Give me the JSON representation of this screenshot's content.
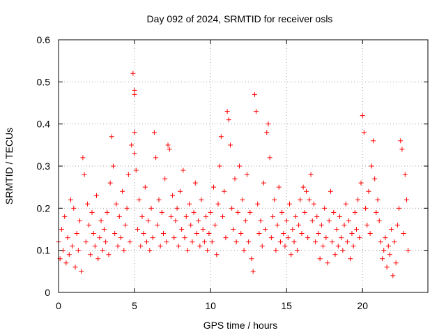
{
  "chart_data": {
    "type": "scatter",
    "title": "Day 092 of 2024, SRMTID for receiver osls",
    "xlabel": "GPS time / hours",
    "ylabel": "SRMTID / TECUs",
    "xlim": [
      0,
      24.3
    ],
    "ylim": [
      0,
      0.6
    ],
    "xticks": [
      0,
      5,
      10,
      15,
      20
    ],
    "yticks": [
      0,
      0.1,
      0.2,
      0.3,
      0.4,
      0.5,
      0.6
    ],
    "xtick_labels": [
      "0",
      "5",
      "10",
      "15",
      "20"
    ],
    "ytick_labels": [
      "0",
      "0.1",
      "0.2",
      "0.3",
      "0.4",
      "0.5",
      "0.6"
    ],
    "grid": true,
    "marker": "+",
    "color": "#ff0000",
    "series": [
      {
        "name": "SRMTID",
        "points": [
          [
            0.0,
            0.12
          ],
          [
            0.1,
            0.08
          ],
          [
            0.2,
            0.15
          ],
          [
            0.3,
            0.1
          ],
          [
            0.4,
            0.18
          ],
          [
            0.5,
            0.07
          ],
          [
            0.6,
            0.13
          ],
          [
            0.7,
            0.09
          ],
          [
            0.8,
            0.22
          ],
          [
            0.9,
            0.11
          ],
          [
            1.0,
            0.2
          ],
          [
            1.1,
            0.06
          ],
          [
            1.2,
            0.14
          ],
          [
            1.3,
            0.1
          ],
          [
            1.4,
            0.17
          ],
          [
            1.5,
            0.05
          ],
          [
            1.6,
            0.32
          ],
          [
            1.7,
            0.28
          ],
          [
            1.8,
            0.12
          ],
          [
            1.9,
            0.21
          ],
          [
            2.0,
            0.16
          ],
          [
            2.1,
            0.09
          ],
          [
            2.2,
            0.19
          ],
          [
            2.3,
            0.14
          ],
          [
            2.4,
            0.11
          ],
          [
            2.5,
            0.23
          ],
          [
            2.6,
            0.08
          ],
          [
            2.7,
            0.13
          ],
          [
            2.8,
            0.17
          ],
          [
            2.9,
            0.1
          ],
          [
            3.0,
            0.15
          ],
          [
            3.1,
            0.12
          ],
          [
            3.2,
            0.19
          ],
          [
            3.3,
            0.09
          ],
          [
            3.4,
            0.26
          ],
          [
            3.5,
            0.37
          ],
          [
            3.6,
            0.3
          ],
          [
            3.7,
            0.14
          ],
          [
            3.8,
            0.21
          ],
          [
            3.9,
            0.11
          ],
          [
            4.0,
            0.18
          ],
          [
            4.1,
            0.13
          ],
          [
            4.2,
            0.24
          ],
          [
            4.3,
            0.1
          ],
          [
            4.4,
            0.16
          ],
          [
            4.5,
            0.2
          ],
          [
            4.6,
            0.28
          ],
          [
            4.7,
            0.12
          ],
          [
            4.8,
            0.35
          ],
          [
            4.9,
            0.52
          ],
          [
            5.0,
            0.48
          ],
          [
            5.0,
            0.47
          ],
          [
            5.0,
            0.38
          ],
          [
            5.0,
            0.33
          ],
          [
            5.1,
            0.29
          ],
          [
            5.2,
            0.15
          ],
          [
            5.3,
            0.22
          ],
          [
            5.4,
            0.11
          ],
          [
            5.5,
            0.18
          ],
          [
            5.6,
            0.14
          ],
          [
            5.7,
            0.25
          ],
          [
            5.8,
            0.12
          ],
          [
            5.9,
            0.17
          ],
          [
            6.0,
            0.1
          ],
          [
            6.1,
            0.2
          ],
          [
            6.2,
            0.13
          ],
          [
            6.3,
            0.38
          ],
          [
            6.4,
            0.32
          ],
          [
            6.5,
            0.16
          ],
          [
            6.6,
            0.22
          ],
          [
            6.7,
            0.11
          ],
          [
            6.8,
            0.19
          ],
          [
            6.9,
            0.14
          ],
          [
            7.0,
            0.27
          ],
          [
            7.1,
            0.12
          ],
          [
            7.2,
            0.35
          ],
          [
            7.3,
            0.34
          ],
          [
            7.4,
            0.18
          ],
          [
            7.5,
            0.23
          ],
          [
            7.6,
            0.13
          ],
          [
            7.7,
            0.17
          ],
          [
            7.8,
            0.2
          ],
          [
            7.9,
            0.11
          ],
          [
            8.0,
            0.24
          ],
          [
            8.1,
            0.15
          ],
          [
            8.2,
            0.29
          ],
          [
            8.3,
            0.13
          ],
          [
            8.4,
            0.18
          ],
          [
            8.5,
            0.1
          ],
          [
            8.6,
            0.21
          ],
          [
            8.7,
            0.16
          ],
          [
            8.8,
            0.12
          ],
          [
            8.9,
            0.19
          ],
          [
            9.0,
            0.26
          ],
          [
            9.1,
            0.14
          ],
          [
            9.2,
            0.17
          ],
          [
            9.3,
            0.11
          ],
          [
            9.4,
            0.22
          ],
          [
            9.5,
            0.15
          ],
          [
            9.6,
            0.12
          ],
          [
            9.7,
            0.18
          ],
          [
            9.8,
            0.1
          ],
          [
            9.9,
            0.14
          ],
          [
            10.0,
            0.19
          ],
          [
            10.1,
            0.12
          ],
          [
            10.2,
            0.25
          ],
          [
            10.3,
            0.16
          ],
          [
            10.4,
            0.09
          ],
          [
            10.5,
            0.21
          ],
          [
            10.6,
            0.3
          ],
          [
            10.7,
            0.37
          ],
          [
            10.8,
            0.18
          ],
          [
            10.9,
            0.24
          ],
          [
            11.0,
            0.13
          ],
          [
            11.1,
            0.43
          ],
          [
            11.2,
            0.41
          ],
          [
            11.3,
            0.35
          ],
          [
            11.4,
            0.2
          ],
          [
            11.5,
            0.15
          ],
          [
            11.6,
            0.27
          ],
          [
            11.7,
            0.12
          ],
          [
            11.8,
            0.19
          ],
          [
            11.9,
            0.3
          ],
          [
            12.0,
            0.14
          ],
          [
            12.1,
            0.22
          ],
          [
            12.2,
            0.1
          ],
          [
            12.3,
            0.17
          ],
          [
            12.4,
            0.28
          ],
          [
            12.5,
            0.12
          ],
          [
            12.6,
            0.19
          ],
          [
            12.7,
            0.08
          ],
          [
            12.8,
            0.05
          ],
          [
            12.9,
            0.47
          ],
          [
            13.0,
            0.43
          ],
          [
            13.1,
            0.21
          ],
          [
            13.2,
            0.14
          ],
          [
            13.3,
            0.17
          ],
          [
            13.4,
            0.11
          ],
          [
            13.5,
            0.26
          ],
          [
            13.6,
            0.15
          ],
          [
            13.7,
            0.38
          ],
          [
            13.8,
            0.4
          ],
          [
            13.9,
            0.32
          ],
          [
            14.0,
            0.13
          ],
          [
            14.1,
            0.18
          ],
          [
            14.2,
            0.22
          ],
          [
            14.3,
            0.1
          ],
          [
            14.4,
            0.16
          ],
          [
            14.5,
            0.25
          ],
          [
            14.6,
            0.12
          ],
          [
            14.7,
            0.19
          ],
          [
            14.8,
            0.14
          ],
          [
            14.9,
            0.11
          ],
          [
            15.0,
            0.17
          ],
          [
            15.1,
            0.13
          ],
          [
            15.2,
            0.21
          ],
          [
            15.3,
            0.09
          ],
          [
            15.4,
            0.15
          ],
          [
            15.5,
            0.12
          ],
          [
            15.6,
            0.18
          ],
          [
            15.7,
            0.1
          ],
          [
            15.8,
            0.16
          ],
          [
            15.9,
            0.22
          ],
          [
            16.0,
            0.14
          ],
          [
            16.1,
            0.25
          ],
          [
            16.2,
            0.19
          ],
          [
            16.3,
            0.24
          ],
          [
            16.4,
            0.13
          ],
          [
            16.5,
            0.22
          ],
          [
            16.6,
            0.28
          ],
          [
            16.7,
            0.17
          ],
          [
            16.8,
            0.21
          ],
          [
            16.9,
            0.12
          ],
          [
            17.0,
            0.18
          ],
          [
            17.1,
            0.14
          ],
          [
            17.2,
            0.08
          ],
          [
            17.3,
            0.16
          ],
          [
            17.4,
            0.11
          ],
          [
            17.5,
            0.2
          ],
          [
            17.6,
            0.13
          ],
          [
            17.7,
            0.07
          ],
          [
            17.8,
            0.17
          ],
          [
            17.9,
            0.24
          ],
          [
            18.0,
            0.12
          ],
          [
            18.1,
            0.19
          ],
          [
            18.2,
            0.09
          ],
          [
            18.3,
            0.15
          ],
          [
            18.4,
            0.11
          ],
          [
            18.5,
            0.18
          ],
          [
            18.6,
            0.13
          ],
          [
            18.7,
            0.1
          ],
          [
            18.8,
            0.16
          ],
          [
            18.9,
            0.21
          ],
          [
            19.0,
            0.12
          ],
          [
            19.1,
            0.17
          ],
          [
            19.2,
            0.08
          ],
          [
            19.3,
            0.14
          ],
          [
            19.4,
            0.11
          ],
          [
            19.5,
            0.19
          ],
          [
            19.6,
            0.15
          ],
          [
            19.7,
            0.22
          ],
          [
            19.8,
            0.13
          ],
          [
            19.9,
            0.26
          ],
          [
            20.0,
            0.42
          ],
          [
            20.1,
            0.38
          ],
          [
            20.2,
            0.2
          ],
          [
            20.3,
            0.16
          ],
          [
            20.4,
            0.24
          ],
          [
            20.5,
            0.14
          ],
          [
            20.6,
            0.3
          ],
          [
            20.7,
            0.36
          ],
          [
            20.8,
            0.27
          ],
          [
            20.9,
            0.19
          ],
          [
            21.0,
            0.22
          ],
          [
            21.1,
            0.17
          ],
          [
            21.2,
            0.12
          ],
          [
            21.3,
            0.08
          ],
          [
            21.4,
            0.1
          ],
          [
            21.5,
            0.13
          ],
          [
            21.6,
            0.06
          ],
          [
            21.7,
            0.11
          ],
          [
            21.8,
            0.09
          ],
          [
            21.9,
            0.15
          ],
          [
            22.0,
            0.04
          ],
          [
            22.1,
            0.12
          ],
          [
            22.2,
            0.07
          ],
          [
            22.3,
            0.16
          ],
          [
            22.4,
            0.2
          ],
          [
            22.5,
            0.36
          ],
          [
            22.6,
            0.34
          ],
          [
            22.7,
            0.14
          ],
          [
            22.8,
            0.28
          ],
          [
            22.9,
            0.22
          ],
          [
            23.0,
            0.1
          ]
        ]
      }
    ]
  }
}
